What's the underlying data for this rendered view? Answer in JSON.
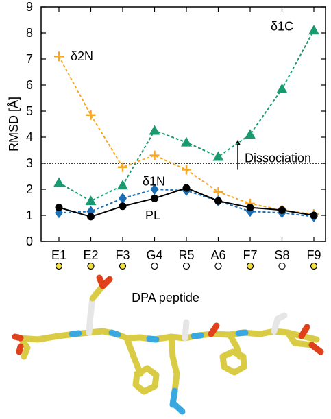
{
  "chart_data": {
    "type": "line",
    "ylabel": "RMSD [Å]",
    "ylim": [
      0,
      9
    ],
    "yticks": [
      "0",
      "1",
      "2",
      "3",
      "4",
      "5",
      "6",
      "7",
      "8",
      "9"
    ],
    "categories": [
      "E1",
      "E2",
      "F3",
      "G4",
      "R5",
      "A6",
      "F7",
      "S8",
      "F9"
    ],
    "residue_markers": [
      "yellow",
      "yellow",
      "yellow",
      "white",
      "white",
      "white",
      "yellow",
      "white",
      "yellow"
    ],
    "threshold": {
      "value": 3,
      "label": "Dissociation"
    },
    "series": [
      {
        "name": "δ2N",
        "color": "#f5a623",
        "marker": "plus",
        "dashed": true,
        "values": [
          7.1,
          4.85,
          2.85,
          3.3,
          2.75,
          1.9,
          1.45,
          1.2,
          1.05
        ]
      },
      {
        "name": "δ1C",
        "color": "#1a9a70",
        "marker": "triangle",
        "dashed": true,
        "values": [
          2.25,
          1.55,
          2.15,
          4.25,
          3.8,
          3.25,
          4.1,
          5.85,
          8.1
        ]
      },
      {
        "name": "δ1N",
        "color": "#1a6fb5",
        "marker": "diamond",
        "dashed": true,
        "values": [
          1.1,
          1.15,
          1.65,
          2.0,
          1.95,
          1.55,
          1.15,
          1.1,
          0.95
        ]
      },
      {
        "name": "PL",
        "color": "#000000",
        "marker": "circle",
        "dashed": false,
        "values": [
          1.3,
          0.95,
          1.35,
          1.65,
          2.05,
          1.55,
          1.3,
          1.2,
          1.0
        ]
      }
    ]
  },
  "peptide": {
    "title": "DPA peptide",
    "colors": {
      "carbon": "#d9cc44",
      "nitrogen": "#3aa8e0",
      "oxygen": "#e0401a",
      "hydrogen": "#e6e6e6"
    }
  }
}
